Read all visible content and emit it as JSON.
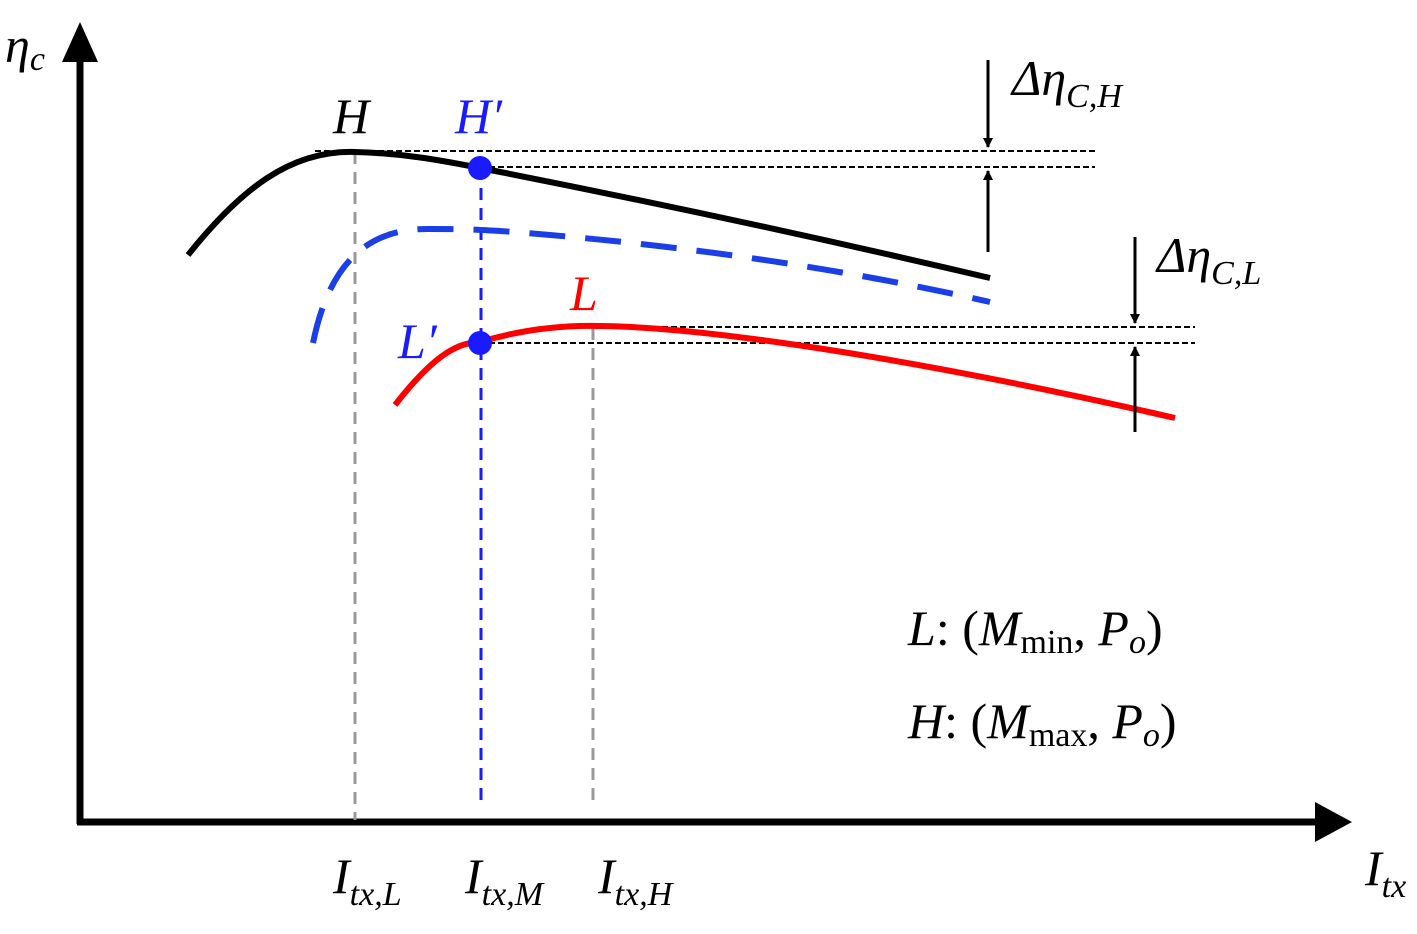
{
  "axes": {
    "y_label": {
      "base": "η",
      "sub": "c"
    },
    "x_label": {
      "base": "I",
      "sub": "tx"
    }
  },
  "points": [
    "H",
    "H′",
    "L",
    "L′"
  ],
  "x_marks": [
    {
      "base": "I",
      "sub": "tx,L"
    },
    {
      "base": "I",
      "sub": "tx,M"
    },
    {
      "base": "I",
      "sub": "tx,H"
    }
  ],
  "deltas": [
    {
      "base": "Δη",
      "sub": "C,H"
    },
    {
      "base": "Δη",
      "sub": "C,L"
    }
  ],
  "legend": [
    [
      "L",
      ": (",
      "M",
      "min",
      ", ",
      "P",
      "o",
      ")"
    ],
    [
      "H",
      ": (",
      "M",
      "max",
      ", ",
      "P",
      "o",
      ")"
    ]
  ]
}
